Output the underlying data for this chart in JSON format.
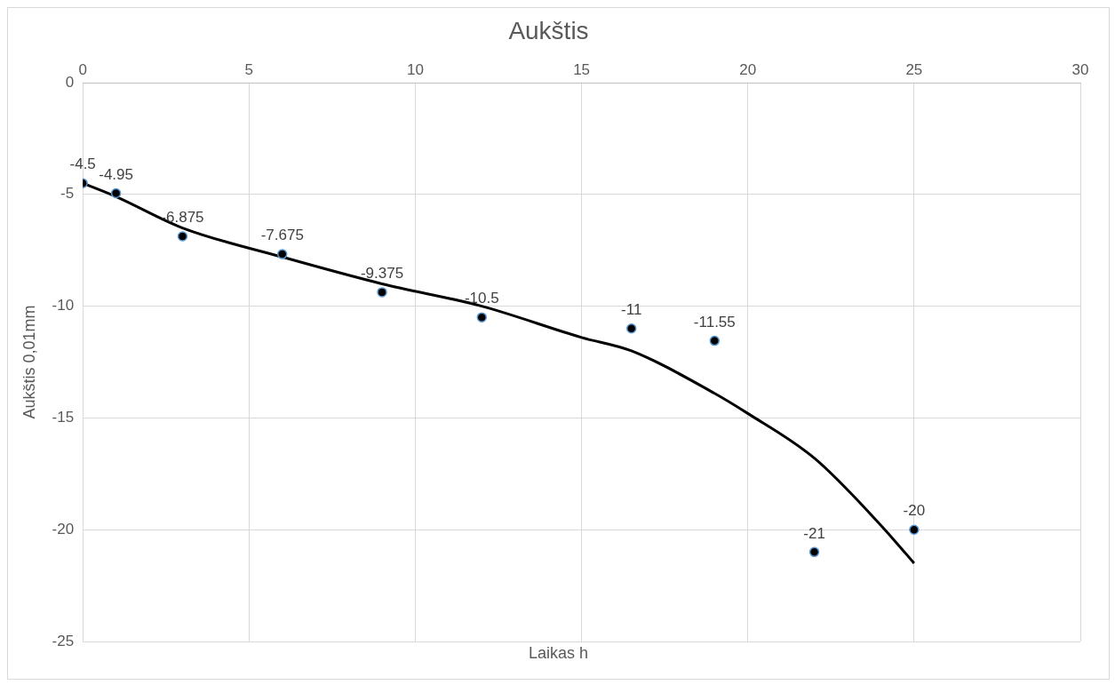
{
  "chart_data": {
    "type": "scatter",
    "title": "Aukštis",
    "xlabel": "Laikas h",
    "ylabel": "Aukštis 0,01mm",
    "xlim": [
      0,
      30
    ],
    "xticks": [
      0,
      5,
      10,
      15,
      20,
      25,
      30
    ],
    "ylim": [
      -25,
      0
    ],
    "yticks": [
      -25,
      -20,
      -15,
      -10,
      -5,
      0
    ],
    "grid": true,
    "legend": false,
    "series": [
      {
        "marker": "circle",
        "color": "#000000",
        "x": [
          0,
          1,
          3,
          6,
          9,
          12,
          16.5,
          19,
          22,
          25
        ],
        "values": [
          -4.5,
          -4.95,
          -6.875,
          -7.675,
          -9.375,
          -10.5,
          -11,
          -11.55,
          -21,
          -20
        ],
        "value_labels": [
          "-4.5",
          "-4.95",
          "-6.875",
          "-7.675",
          "-9.375",
          "-10.5",
          "-11",
          "-11.55",
          "-21",
          "-20"
        ]
      },
      {
        "type": "line",
        "marker": "none",
        "color": "#000000",
        "x": [
          0,
          1,
          3,
          6,
          9,
          12,
          15,
          16.5,
          19,
          20,
          22,
          24,
          25
        ],
        "values": [
          -4.5,
          -5.1,
          -6.5,
          -7.8,
          -9,
          -10,
          -11.4,
          -12,
          -13.9,
          -14.8,
          -16.8,
          -19.8,
          -21.5
        ]
      }
    ]
  }
}
